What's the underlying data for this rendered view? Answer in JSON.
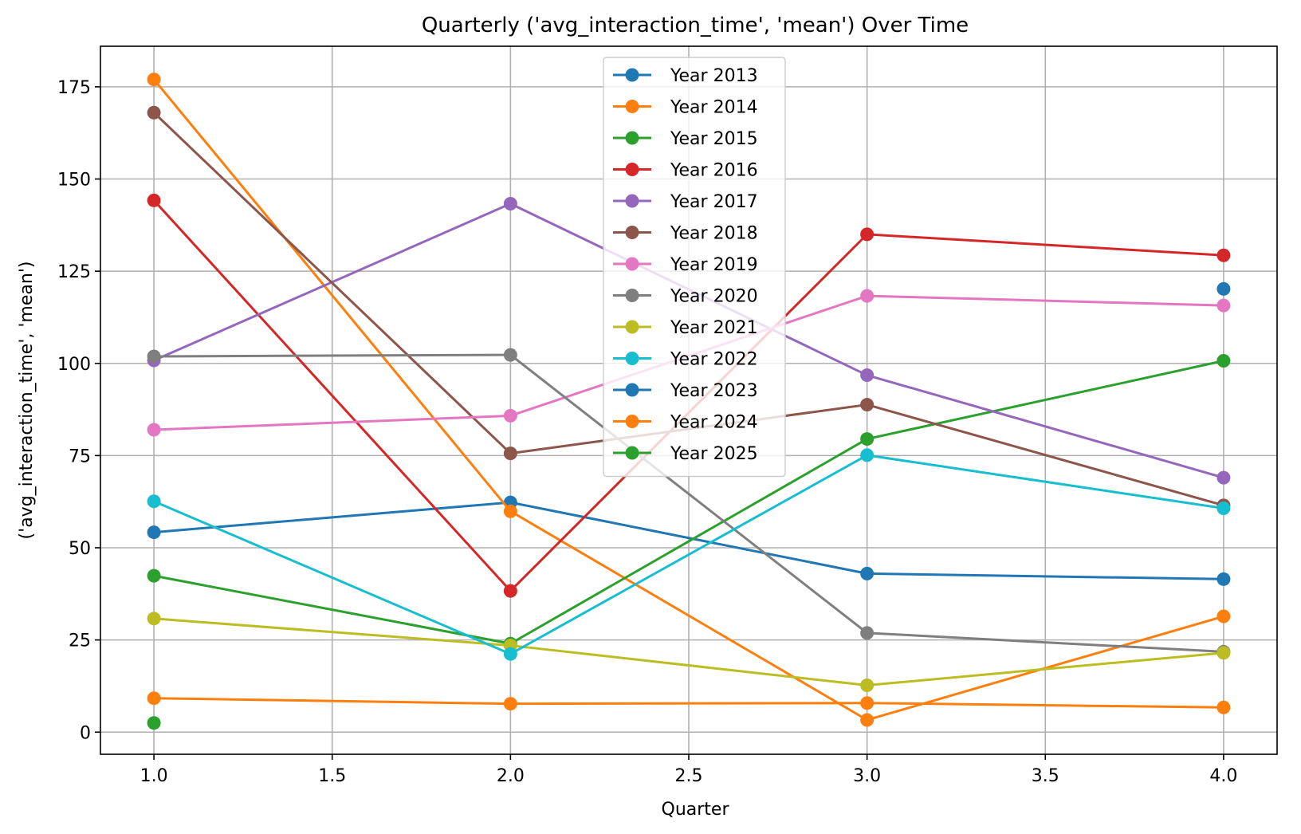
{
  "chart_data": {
    "type": "line",
    "title": "Quarterly ('avg_interaction_time', 'mean') Over Time",
    "xlabel": "Quarter",
    "ylabel": "('avg_interaction_time', 'mean')",
    "xlim": [
      0.85,
      4.15
    ],
    "ylim": [
      -6,
      186
    ],
    "xticks": [
      1.0,
      1.5,
      2.0,
      2.5,
      3.0,
      3.5,
      4.0
    ],
    "xtick_labels": [
      "1.0",
      "1.5",
      "2.0",
      "2.5",
      "3.0",
      "3.5",
      "4.0"
    ],
    "yticks": [
      0,
      25,
      50,
      75,
      100,
      125,
      150,
      175
    ],
    "ytick_labels": [
      "0",
      "25",
      "50",
      "75",
      "100",
      "125",
      "150",
      "175"
    ],
    "grid": true,
    "legend_position": "top-center",
    "marker": "circle",
    "series": [
      {
        "name": "Year 2013",
        "color": "#1f77b4",
        "x": [
          1,
          2,
          3,
          4
        ],
        "values": [
          54.2,
          62.3,
          43.0,
          41.5
        ]
      },
      {
        "name": "Year 2014",
        "color": "#ff7f0e",
        "x": [
          1,
          2,
          3,
          4
        ],
        "values": [
          177.0,
          59.9,
          3.3,
          31.4
        ]
      },
      {
        "name": "Year 2015",
        "color": "#2ca02c",
        "x": [
          1,
          2,
          3,
          4
        ],
        "values": [
          42.4,
          24.0,
          79.5,
          100.7
        ]
      },
      {
        "name": "Year 2016",
        "color": "#d62728",
        "x": [
          1,
          2,
          3,
          4
        ],
        "values": [
          144.2,
          38.3,
          135.0,
          129.3
        ]
      },
      {
        "name": "Year 2017",
        "color": "#9467bd",
        "x": [
          1,
          2,
          3,
          4
        ],
        "values": [
          100.8,
          143.3,
          96.8,
          69.0
        ]
      },
      {
        "name": "Year 2018",
        "color": "#8c564b",
        "x": [
          1,
          2,
          3,
          4
        ],
        "values": [
          168.0,
          75.6,
          88.8,
          61.5
        ]
      },
      {
        "name": "Year 2019",
        "color": "#e377c2",
        "x": [
          1,
          2,
          3,
          4
        ],
        "values": [
          82.0,
          85.8,
          118.3,
          115.7
        ]
      },
      {
        "name": "Year 2020",
        "color": "#7f7f7f",
        "x": [
          1,
          2,
          3,
          4
        ],
        "values": [
          101.9,
          102.3,
          26.9,
          21.8
        ]
      },
      {
        "name": "Year 2021",
        "color": "#bcbd22",
        "x": [
          1,
          2,
          3,
          4
        ],
        "values": [
          30.8,
          23.5,
          12.7,
          21.5
        ]
      },
      {
        "name": "Year 2022",
        "color": "#17becf",
        "x": [
          1,
          2,
          3,
          4
        ],
        "values": [
          62.6,
          21.2,
          75.1,
          60.7
        ]
      },
      {
        "name": "Year 2023",
        "color": "#1f77b4",
        "x": [
          4
        ],
        "values": [
          120.2
        ]
      },
      {
        "name": "Year 2024",
        "color": "#ff7f0e",
        "x": [
          1,
          2,
          3,
          4
        ],
        "values": [
          9.2,
          7.7,
          7.9,
          6.7
        ]
      },
      {
        "name": "Year 2025",
        "color": "#2ca02c",
        "x": [
          1
        ],
        "values": [
          2.5
        ]
      }
    ]
  }
}
